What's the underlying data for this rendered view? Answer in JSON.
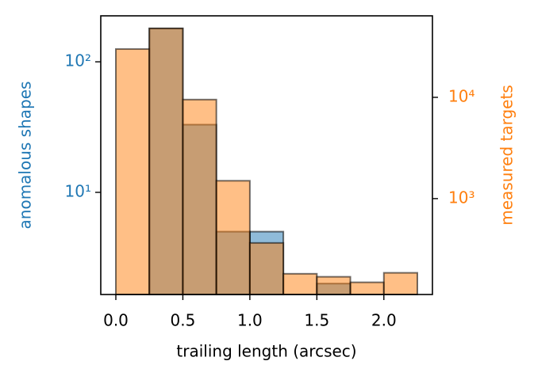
{
  "chart_data": {
    "type": "histogram",
    "x_label": "trailing length (arcsec)",
    "y_label": "anomalous shapes",
    "y2_label": "measured targets",
    "bins": [
      0,
      0.25,
      0.5,
      0.75,
      1.0,
      1.25,
      1.5,
      1.75,
      2.0,
      2.25
    ],
    "series": [
      {
        "name": "anomalous shapes",
        "color": "#1f77b4",
        "values": [
          0,
          180,
          33,
          5,
          5,
          0,
          2,
          0,
          0
        ]
      },
      {
        "name": "measured targets",
        "color": "#ff7f0e",
        "axis": "y2",
        "values": [
          30000,
          48000,
          9500,
          1500,
          365,
          181,
          169,
          149,
          185
        ]
      }
    ],
    "xlim": [
      -0.1125,
      2.3625
    ],
    "xticks": [
      {
        "value": 0,
        "label": "0.0"
      },
      0.5,
      {
        "value": 1.0,
        "label": "1.0"
      },
      1.5,
      {
        "value": 2.0,
        "label": "2.0"
      }
    ],
    "ylim": [
      1.65,
      225
    ],
    "y_log": true,
    "yticks": [
      {
        "value": 10,
        "label": "10¹"
      },
      {
        "value": 100,
        "label": "10²"
      }
    ],
    "y2lim": [
      113,
      63800
    ],
    "y2_log": true,
    "y2ticks": [
      {
        "value": 1000,
        "label": "10³"
      },
      {
        "value": 10000,
        "label": "10⁴"
      }
    ]
  }
}
